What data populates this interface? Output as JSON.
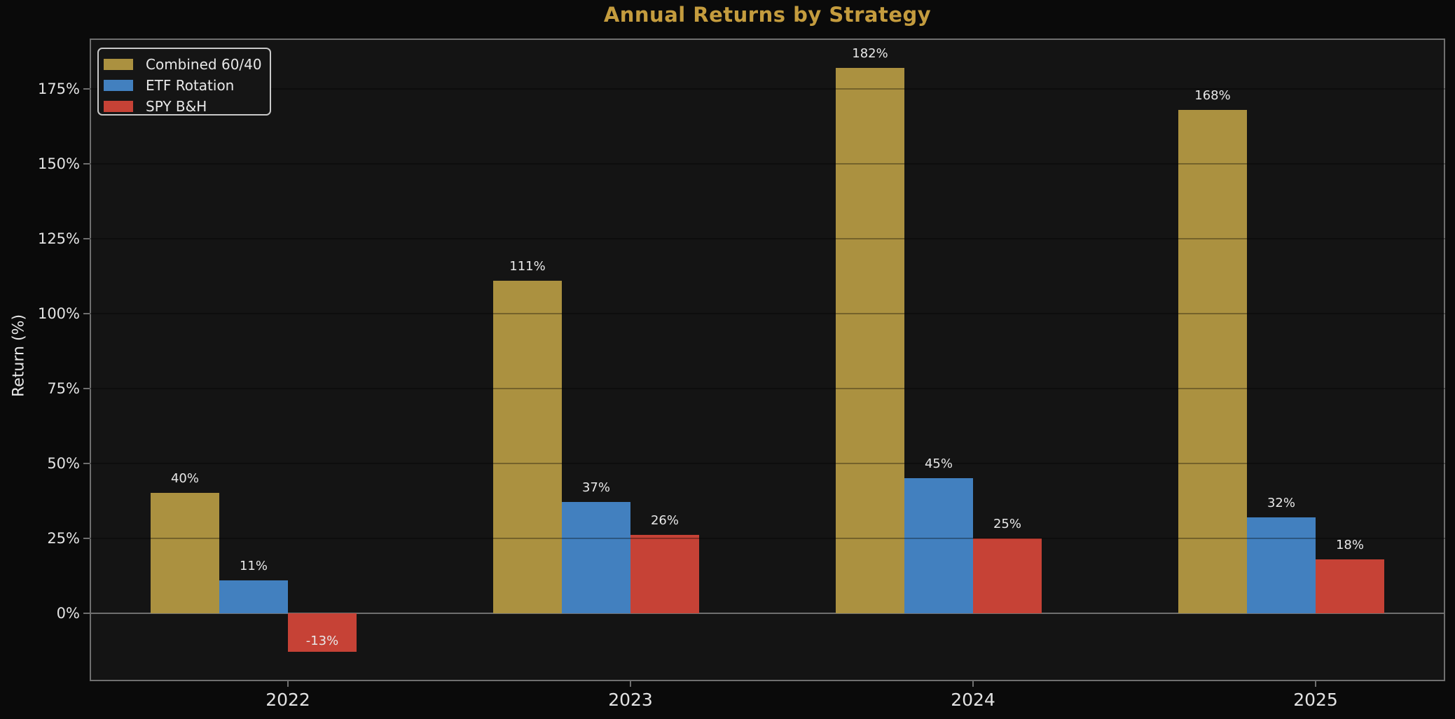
{
  "title": "Annual Returns by Strategy",
  "colors": {
    "background": "#0a0a0a",
    "plot_background": "#141414",
    "title": "#c49c3e",
    "axis": "#6f6f6f",
    "grid": "rgba(0,0,0,0.32)",
    "text": "#e8e8e8",
    "tick_text": "#e3e3e3",
    "gold": "#ab9140",
    "blue": "#4280bf",
    "red": "#c64236"
  },
  "chart_data": {
    "type": "bar",
    "title": "Annual Returns by Strategy",
    "xlabel": "",
    "ylabel": "Return (%)",
    "categories": [
      "2022",
      "2023",
      "2024",
      "2025"
    ],
    "series": [
      {
        "name": "Combined 60/40",
        "color": "#ab9140",
        "values": [
          40,
          111,
          182,
          168
        ]
      },
      {
        "name": "ETF Rotation",
        "color": "#4280bf",
        "values": [
          11,
          37,
          45,
          32
        ]
      },
      {
        "name": "SPY B&H",
        "color": "#c64236",
        "values": [
          -13,
          26,
          25,
          18
        ]
      }
    ],
    "bar_labels": [
      [
        "40%",
        "111%",
        "182%",
        "168%"
      ],
      [
        "11%",
        "37%",
        "45%",
        "32%"
      ],
      [
        "-13%",
        "26%",
        "25%",
        "18%"
      ]
    ],
    "y_ticks": [
      "0%",
      "25%",
      "50%",
      "75%",
      "100%",
      "125%",
      "150%",
      "175%"
    ],
    "y_tick_values": [
      0,
      25,
      50,
      75,
      100,
      125,
      150,
      175
    ],
    "ylim": [
      -22.75,
      191.75
    ],
    "grid": true,
    "legend_position": "upper left"
  }
}
